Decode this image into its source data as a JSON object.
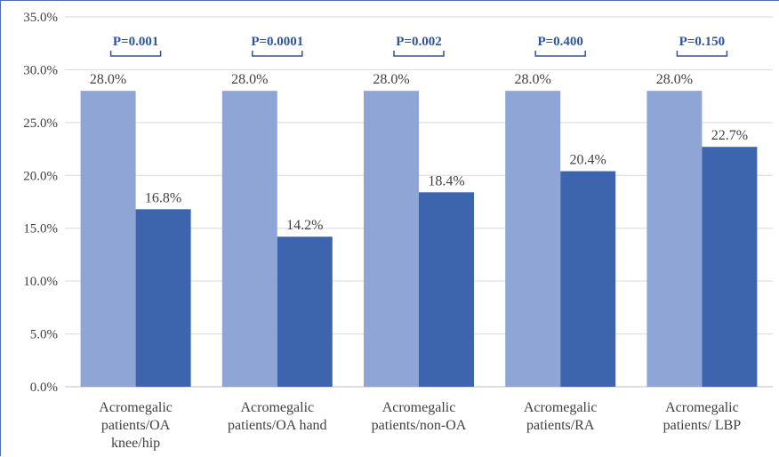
{
  "chart_data": {
    "type": "bar",
    "categories": [
      [
        "Acromegalic",
        "patients/OA",
        "knee/hip"
      ],
      [
        "Acromegalic",
        "patients/OA hand"
      ],
      [
        "Acromegalic",
        "patients/non-OA"
      ],
      [
        "Acromegalic",
        "patients/RA"
      ],
      [
        "Acromegalic",
        "patients/ LBP"
      ]
    ],
    "series": [
      {
        "values": [
          28.0,
          28.0,
          28.0,
          28.0,
          28.0
        ],
        "color": "#8fa5d6"
      },
      {
        "values": [
          16.8,
          14.2,
          18.4,
          20.4,
          22.7
        ],
        "color": "#3d65ad"
      }
    ],
    "data_labels": [
      [
        "28.0%",
        "28.0%",
        "28.0%",
        "28.0%",
        "28.0%"
      ],
      [
        "16.8%",
        "14.2%",
        "18.4%",
        "20.4%",
        "22.7%"
      ]
    ],
    "annotations": [
      "P=0.001",
      "P=0.0001",
      "P=0.002",
      "P=0.400",
      "P=0.150"
    ],
    "yticks": [
      "0.0%",
      "5.0%",
      "10.0%",
      "15.0%",
      "20.0%",
      "25.0%",
      "30.0%",
      "35.0%"
    ],
    "ylim": [
      0,
      35
    ],
    "grid": true,
    "annotation_color": "#2f5597",
    "gridline_color": "#d9d9d9",
    "axis_color": "#bfbfbf"
  }
}
